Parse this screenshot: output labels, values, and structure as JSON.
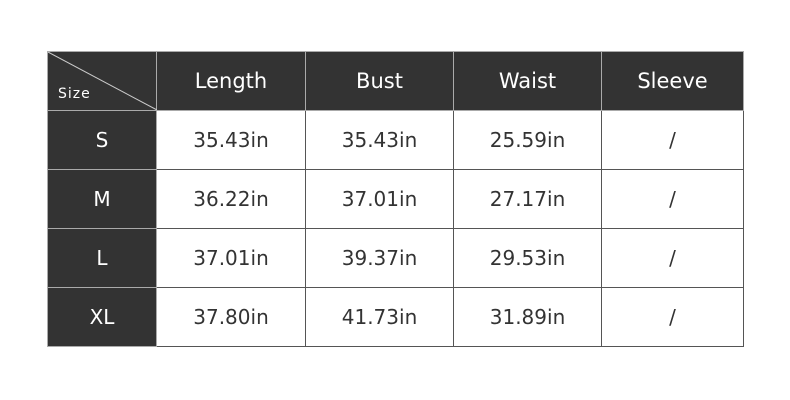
{
  "table": {
    "corner_label": "Size",
    "headers": [
      "Length",
      "Bust",
      "Waist",
      "Sleeve"
    ],
    "rows": [
      {
        "size": "S",
        "values": [
          "35.43in",
          "35.43in",
          "25.59in",
          "/"
        ]
      },
      {
        "size": "M",
        "values": [
          "36.22in",
          "37.01in",
          "27.17in",
          "/"
        ]
      },
      {
        "size": "L",
        "values": [
          "37.01in",
          "39.37in",
          "29.53in",
          "/"
        ]
      },
      {
        "size": "XL",
        "values": [
          "37.80in",
          "41.73in",
          "31.89in",
          "/"
        ]
      }
    ],
    "colors": {
      "header_bg": "#333333",
      "header_text": "#ffffff",
      "cell_text": "#333333"
    }
  }
}
